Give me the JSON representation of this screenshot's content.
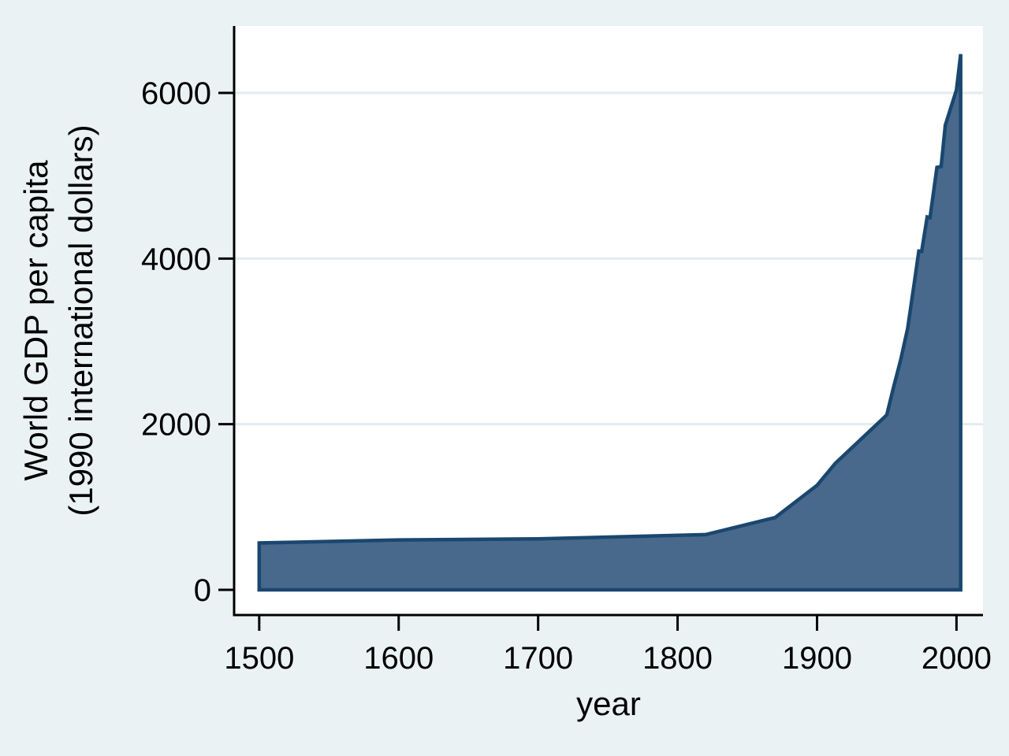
{
  "figure": {
    "background_color": "#EAF2F3",
    "plot_background_color": "#FFFFFF",
    "grid_color": "#E2ECEE",
    "axis_color": "#000000",
    "text_color": "#000000"
  },
  "chart_data": {
    "type": "area",
    "title": "",
    "xlabel": "year",
    "ylabel_lines": [
      "World GDP per capita",
      "(1990 international dollars)"
    ],
    "legend": "none",
    "grid": "horizontal",
    "xlim": [
      1482,
      2019
    ],
    "ylim": [
      -304,
      6808
    ],
    "baseline": 0,
    "x_ticks": [
      {
        "value": 1500,
        "label": "1500"
      },
      {
        "value": 1600,
        "label": "1600"
      },
      {
        "value": 1700,
        "label": "1700"
      },
      {
        "value": 1800,
        "label": "1800"
      },
      {
        "value": 1900,
        "label": "1900"
      },
      {
        "value": 2000,
        "label": "2000"
      }
    ],
    "y_ticks": [
      {
        "value": 0,
        "label": "0"
      },
      {
        "value": 2000,
        "label": "2000"
      },
      {
        "value": 4000,
        "label": "4000"
      },
      {
        "value": 6000,
        "label": "6000"
      }
    ],
    "grid_y_values": [
      2000,
      4000,
      6000
    ],
    "series": [
      {
        "name": "World GDP per capita (1990 international dollars)",
        "fill_color": "#48698C",
        "line_color": "#1A476F",
        "points": [
          [
            1500,
            566
          ],
          [
            1600,
            603
          ],
          [
            1700,
            615
          ],
          [
            1820,
            667
          ],
          [
            1870,
            873
          ],
          [
            1900,
            1262
          ],
          [
            1913,
            1526
          ],
          [
            1950,
            2111
          ],
          [
            1955,
            2455
          ],
          [
            1960,
            2777
          ],
          [
            1965,
            3160
          ],
          [
            1970,
            3736
          ],
          [
            1973,
            4091
          ],
          [
            1975,
            4087
          ],
          [
            1979,
            4502
          ],
          [
            1981,
            4494
          ],
          [
            1986,
            5101
          ],
          [
            1989,
            5112
          ],
          [
            1992,
            5610
          ],
          [
            2000,
            6038
          ],
          [
            2003,
            6469
          ]
        ]
      }
    ]
  }
}
